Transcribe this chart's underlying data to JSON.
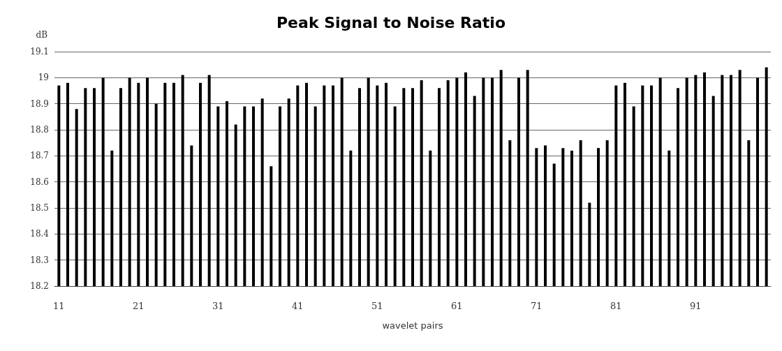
{
  "chart_data": {
    "type": "bar",
    "title": "Peak Signal to Noise Ratio",
    "ylabel": "dB",
    "xlabel": "wavelet pairs",
    "categories": [
      "11",
      null,
      null,
      null,
      null,
      null,
      null,
      null,
      null,
      "21",
      null,
      null,
      null,
      null,
      null,
      null,
      null,
      null,
      "31",
      null,
      null,
      null,
      null,
      null,
      null,
      null,
      null,
      "41",
      null,
      null,
      null,
      null,
      null,
      null,
      null,
      null,
      "51",
      null,
      null,
      null,
      null,
      null,
      null,
      null,
      null,
      "61",
      null,
      null,
      null,
      null,
      null,
      null,
      null,
      null,
      "71",
      null,
      null,
      null,
      null,
      null,
      null,
      null,
      null,
      "81",
      null,
      null,
      null,
      null,
      null,
      null,
      null,
      null,
      "91",
      null,
      null,
      null,
      null,
      null,
      null,
      null,
      null
    ],
    "values": [
      18.97,
      18.98,
      18.88,
      18.96,
      18.96,
      19.0,
      18.72,
      18.96,
      19.0,
      18.98,
      19.0,
      18.9,
      18.98,
      18.98,
      19.01,
      18.74,
      18.98,
      19.01,
      18.89,
      18.91,
      18.82,
      18.89,
      18.89,
      18.92,
      18.66,
      18.89,
      18.92,
      18.97,
      18.98,
      18.89,
      18.97,
      18.97,
      19.0,
      18.72,
      18.96,
      19.0,
      18.97,
      18.98,
      18.89,
      18.96,
      18.96,
      18.99,
      18.72,
      18.96,
      18.99,
      19.0,
      19.02,
      18.93,
      19.0,
      19.0,
      19.03,
      18.76,
      19.0,
      19.03,
      18.73,
      18.74,
      18.67,
      18.73,
      18.72,
      18.76,
      18.52,
      18.73,
      18.76,
      18.97,
      18.98,
      18.89,
      18.97,
      18.97,
      19.0,
      18.72,
      18.96,
      19.0,
      19.01,
      19.02,
      18.93,
      19.01,
      19.01,
      19.03,
      18.76,
      19.0,
      19.04
    ],
    "color": "#000000",
    "ylim": [
      18.2,
      19.1
    ],
    "yticks": [
      18.2,
      18.3,
      18.4,
      18.5,
      18.6,
      18.7,
      18.8,
      18.9,
      19,
      19.1
    ],
    "grid": "y"
  }
}
